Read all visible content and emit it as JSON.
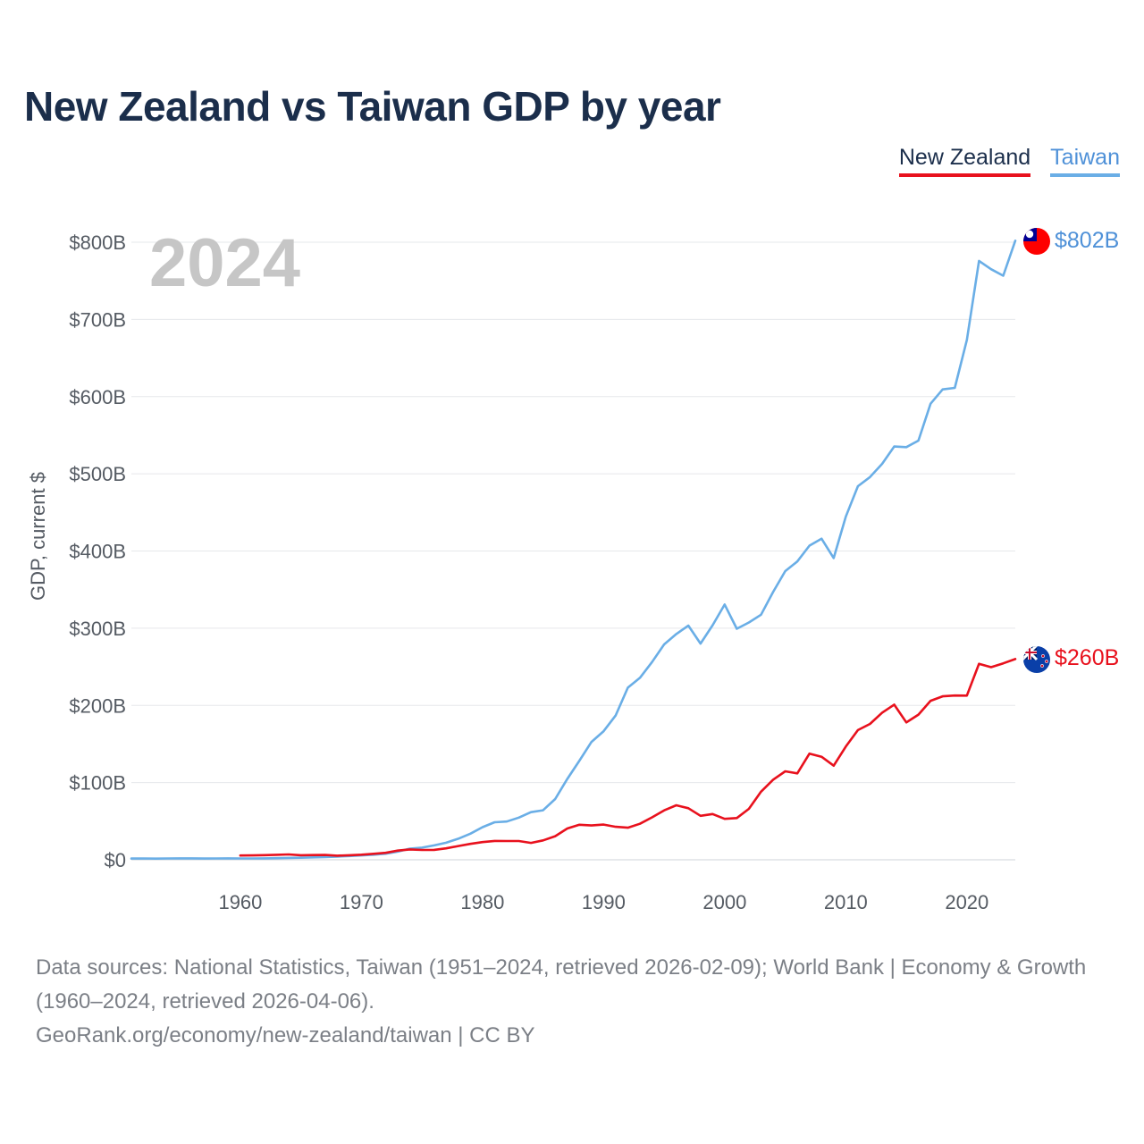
{
  "title": "New Zealand vs Taiwan GDP by year",
  "legend": [
    {
      "label": "New Zealand",
      "color": "#e8111d"
    },
    {
      "label": "Taiwan",
      "color": "#6aaee6"
    }
  ],
  "current_year": "2024",
  "chart_data": {
    "type": "line",
    "title": "New Zealand vs Taiwan GDP by year",
    "xlabel": "",
    "ylabel": "GDP, current $",
    "xlim": [
      1951,
      2024
    ],
    "ylim": [
      0,
      802
    ],
    "unit": "billion US$",
    "x_ticks": [
      1960,
      1970,
      1980,
      1990,
      2000,
      2010,
      2020
    ],
    "y_ticks": [
      {
        "value": 0,
        "label": "$0"
      },
      {
        "value": 100,
        "label": "$100B"
      },
      {
        "value": 200,
        "label": "$200B"
      },
      {
        "value": 300,
        "label": "$300B"
      },
      {
        "value": 400,
        "label": "$400B"
      },
      {
        "value": 500,
        "label": "$500B"
      },
      {
        "value": 600,
        "label": "$600B"
      },
      {
        "value": 700,
        "label": "$700B"
      },
      {
        "value": 800,
        "label": "$800B"
      }
    ],
    "grid": true,
    "legend_position": "top-right",
    "series": [
      {
        "name": "Taiwan",
        "color": "#6aaee6",
        "flag": "taiwan-flag",
        "end_label": "$802B",
        "start_year": 1951,
        "values": [
          1.6,
          1.7,
          1.5,
          1.7,
          1.8,
          1.8,
          1.6,
          1.7,
          1.8,
          1.7,
          1.7,
          1.9,
          2.1,
          2.4,
          2.7,
          3.1,
          3.5,
          4.2,
          4.9,
          5.7,
          6.6,
          7.9,
          10.7,
          14.5,
          15.7,
          18.6,
          22.1,
          27.3,
          33.8,
          42.3,
          48.6,
          49.6,
          54.6,
          61.7,
          64.1,
          78.7,
          104.7,
          128.4,
          152.7,
          166.6,
          187.1,
          223.0,
          235.7,
          256.2,
          279.0,
          292.5,
          303.3,
          280.0,
          303.8,
          330.7,
          299.3,
          307.4,
          317.4,
          346.9,
          374.0,
          386.5,
          406.9,
          416.0,
          390.8,
          444.3,
          483.9,
          495.8,
          512.9,
          535.3,
          534.5,
          543.0,
          590.8,
          609.3,
          611.3,
          673.3,
          775.8,
          765.0,
          756.6,
          802.0
        ]
      },
      {
        "name": "New Zealand",
        "color": "#e8111d",
        "flag": "new-zealand-flag",
        "end_label": "$260B",
        "start_year": 1960,
        "values": [
          5.5,
          5.7,
          6.0,
          6.5,
          7.0,
          5.9,
          6.1,
          6.3,
          5.3,
          5.9,
          6.6,
          7.8,
          9.0,
          11.9,
          13.4,
          12.7,
          12.9,
          14.8,
          17.8,
          20.6,
          22.9,
          24.4,
          24.3,
          24.3,
          21.9,
          25.1,
          30.6,
          40.5,
          45.4,
          44.5,
          45.6,
          42.7,
          41.6,
          46.6,
          55.0,
          64.0,
          70.6,
          66.8,
          57.0,
          59.3,
          53.0,
          54.1,
          66.0,
          88.2,
          103.7,
          114.6,
          112.0,
          137.5,
          133.5,
          121.9,
          146.6,
          168.0,
          176.0,
          190.6,
          201.0,
          177.9,
          188.0,
          206.0,
          211.8,
          212.8,
          212.7,
          253.9,
          249.5,
          254.5,
          260.0
        ]
      }
    ]
  },
  "footer": {
    "line1": "Data sources: National Statistics, Taiwan (1951–2024, retrieved 2026-02-09); World Bank | Economy & Growth (1960–2024, retrieved 2026-04-06).",
    "line2": "GeoRank.org/economy/new-zealand/taiwan | CC BY"
  }
}
